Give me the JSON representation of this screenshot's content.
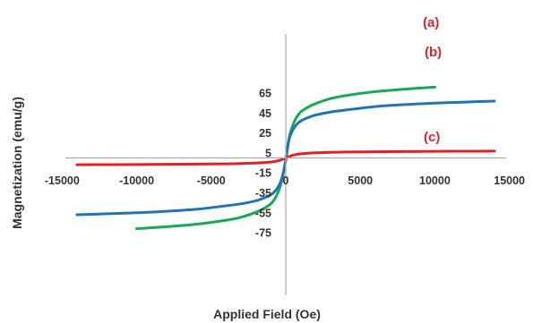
{
  "chart_data": {
    "type": "line",
    "xlabel": "Applied Field (Oe)",
    "ylabel": "Magnetization (emu/g)",
    "xlim": [
      -15000,
      15000
    ],
    "ylim": [
      -75,
      75
    ],
    "x_ticks": [
      "-15000",
      "-10000",
      "-5000",
      "0",
      "5000",
      "10000",
      "15000"
    ],
    "y_ticks": [
      "65",
      "45",
      "25",
      "5",
      "-15",
      "-35",
      "-55",
      "-75"
    ],
    "grid": false,
    "colors": {
      "a": "#1aa851",
      "b": "#1f73b7",
      "c": "#e02127",
      "axis": "#aaaaaa"
    },
    "series": [
      {
        "name": "(a)",
        "x": [
          -10000,
          -8000,
          -6000,
          -4000,
          -3000,
          -2000,
          -1500,
          -1000,
          -700,
          -400,
          -200,
          0,
          200,
          400,
          700,
          1000,
          1500,
          2000,
          3000,
          4000,
          6000,
          8000,
          10000
        ],
        "y": [
          -71,
          -69,
          -66.5,
          -62.5,
          -59.5,
          -54.5,
          -51,
          -46,
          -40,
          -30,
          -18,
          -2,
          18,
          30,
          40,
          46,
          51,
          54.5,
          59.5,
          62.5,
          66.5,
          69,
          71
        ]
      },
      {
        "name": "(b)",
        "x": [
          -14000,
          -12000,
          -10000,
          -8000,
          -6000,
          -4000,
          -3000,
          -2000,
          -1500,
          -1000,
          -700,
          -400,
          -200,
          0,
          200,
          400,
          700,
          1000,
          1500,
          2000,
          3000,
          4000,
          6000,
          8000,
          10000,
          12000,
          14000
        ],
        "y": [
          -57,
          -56,
          -55,
          -53.5,
          -51.5,
          -48,
          -46,
          -43,
          -40.5,
          -37,
          -33,
          -26,
          -17,
          -2,
          17,
          26,
          33,
          37,
          40.5,
          43,
          46,
          48,
          51.5,
          53.5,
          55,
          56,
          57
        ]
      },
      {
        "name": "(c)",
        "x": [
          -14000,
          -12000,
          -10000,
          -8000,
          -6000,
          -4000,
          -3000,
          -2000,
          -1500,
          -1000,
          -700,
          -400,
          -200,
          0,
          200,
          400,
          700,
          1000,
          1500,
          2000,
          3000,
          4000,
          6000,
          8000,
          10000,
          12000,
          14000
        ],
        "y": [
          -6.8,
          -6.7,
          -6.6,
          -6.4,
          -6.2,
          -5.9,
          -5.6,
          -5.1,
          -4.7,
          -4.1,
          -3.4,
          -2.4,
          -1.3,
          0,
          1.3,
          2.4,
          3.4,
          4.1,
          4.7,
          5.1,
          5.6,
          5.9,
          6.2,
          6.4,
          6.6,
          6.7,
          6.8
        ]
      }
    ]
  }
}
